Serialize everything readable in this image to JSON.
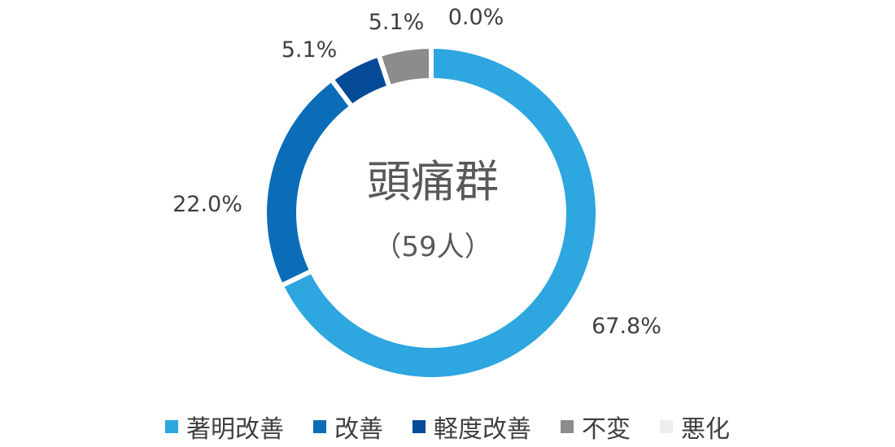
{
  "chart_data": {
    "type": "pie",
    "center_title": "頭痛群",
    "center_subtitle": "（59人）",
    "slices": [
      {
        "label": "著明改善",
        "value": 67.8,
        "display": "67.8%",
        "color": "#2EA6E0"
      },
      {
        "label": "改善",
        "value": 22.0,
        "display": "22.0%",
        "color": "#0B6DB8"
      },
      {
        "label": "軽度改善",
        "value": 5.1,
        "display": "5.1%",
        "color": "#054A96"
      },
      {
        "label": "不変",
        "value": 5.1,
        "display": "5.1%",
        "color": "#8C8C8C"
      },
      {
        "label": "悪化",
        "value": 0.0,
        "display": "0.0%",
        "color": "#EDEDED"
      }
    ],
    "legend_position": "bottom"
  }
}
